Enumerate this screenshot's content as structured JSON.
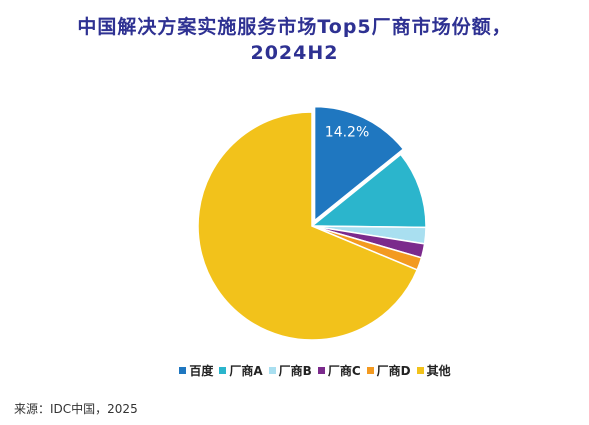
{
  "chart_data": {
    "type": "pie",
    "title_line1": "中国解决方案实施服务市场Top5厂商市场份额，",
    "title_line2": "2024H2",
    "slices": [
      {
        "name": "百度",
        "value": 14.2,
        "label": "14.2%",
        "color": "#1f77c0"
      },
      {
        "name": "厂商A",
        "value": 11.0,
        "label": "",
        "color": "#2bb5cc"
      },
      {
        "name": "厂商B",
        "value": 2.3,
        "label": "",
        "color": "#a9dff0"
      },
      {
        "name": "厂商C",
        "value": 2.0,
        "label": "",
        "color": "#7b2a8c"
      },
      {
        "name": "厂商D",
        "value": 1.8,
        "label": "",
        "color": "#f39a20"
      },
      {
        "name": "其他",
        "value": 68.7,
        "label": "",
        "color": "#f2c21b"
      }
    ],
    "exploded_slice": "百度",
    "legend_position": "bottom"
  },
  "source": "来源：IDC中国，2025"
}
